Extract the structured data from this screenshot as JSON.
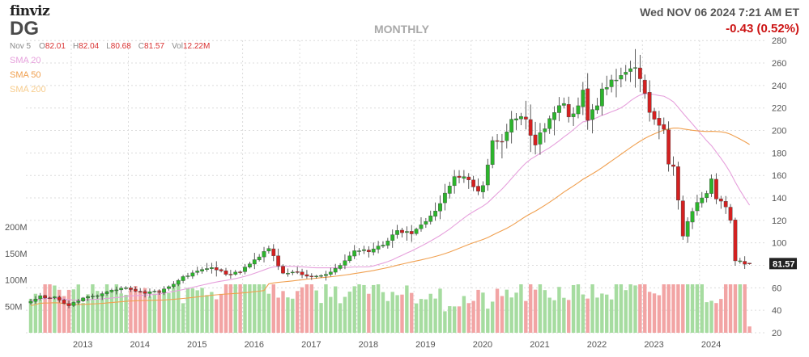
{
  "header": {
    "logo_text": "finviz",
    "ticker": "DG",
    "timeframe": "MONTHLY",
    "datetime": "Wed NOV 06 2024 7:21 AM ET",
    "change": "-0.43 (0.52%)"
  },
  "ohlc": {
    "date": "Nov 5",
    "open_label": "O",
    "open": "82.01",
    "high_label": "H",
    "high": "82.04",
    "low_label": "L",
    "low": "80.68",
    "close_label": "C",
    "close": "81.57",
    "volume_label": "Vol",
    "volume": "12.22M"
  },
  "legend": {
    "sma20": "SMA 20",
    "sma50": "SMA 50",
    "sma200": "SMA 200"
  },
  "colors": {
    "up": "#2cb52c",
    "down": "#d42020",
    "up_volume": "#a6dca0",
    "down_volume": "#f2a4a4",
    "sma20": "#e6a0dc",
    "sma50": "#f0a050",
    "sma200": "#f7cc8c",
    "last_price_bg": "#222222"
  },
  "chart_data": {
    "type": "candlestick",
    "price_axis": {
      "min": 20,
      "max": 280,
      "ticks": [
        20,
        40,
        60,
        80,
        100,
        120,
        140,
        160,
        180,
        200,
        220,
        240,
        260,
        280
      ]
    },
    "volume_axis": {
      "labels": [
        "50M",
        "100M",
        "150M",
        "200M"
      ],
      "values": [
        50,
        100,
        150,
        200
      ],
      "max": 260
    },
    "x_labels": [
      "2013",
      "2014",
      "2015",
      "2016",
      "2017",
      "2018",
      "2019",
      "2020",
      "2021",
      "2022",
      "2023",
      "2024"
    ],
    "last_price": "81.57",
    "anchors": [
      [
        "2012-04",
        48
      ],
      [
        "2012-05",
        50
      ],
      [
        "2012-06",
        53
      ],
      [
        "2012-07",
        51
      ],
      [
        "2012-08",
        51
      ],
      [
        "2012-09",
        52
      ],
      [
        "2012-10",
        49
      ],
      [
        "2012-11",
        46
      ],
      [
        "2012-12",
        44
      ],
      [
        "2013-01",
        47
      ],
      [
        "2013-03",
        51
      ],
      [
        "2013-06",
        53
      ],
      [
        "2013-09",
        58
      ],
      [
        "2013-12",
        60
      ],
      [
        "2014-02",
        57
      ],
      [
        "2014-04",
        55
      ],
      [
        "2014-06",
        57
      ],
      [
        "2014-07",
        56
      ],
      [
        "2014-09",
        61
      ],
      [
        "2014-12",
        70
      ],
      [
        "2015-03",
        75
      ],
      [
        "2015-06",
        78
      ],
      [
        "2015-08",
        75
      ],
      [
        "2015-09",
        72
      ],
      [
        "2015-12",
        74
      ],
      [
        "2016-03",
        85
      ],
      [
        "2016-06",
        95
      ],
      [
        "2016-09",
        73
      ],
      [
        "2016-12",
        74
      ],
      [
        "2017-03",
        70
      ],
      [
        "2017-06",
        72
      ],
      [
        "2017-09",
        80
      ],
      [
        "2017-12",
        93
      ],
      [
        "2018-02",
        94
      ],
      [
        "2018-03",
        92
      ],
      [
        "2018-06",
        98
      ],
      [
        "2018-09",
        111
      ],
      [
        "2018-12",
        108
      ],
      [
        "2019-03",
        119
      ],
      [
        "2019-06",
        135
      ],
      [
        "2019-09",
        159
      ],
      [
        "2019-12",
        156
      ],
      [
        "2020-02",
        146
      ],
      [
        "2020-03",
        151
      ],
      [
        "2020-05",
        191
      ],
      [
        "2020-07",
        190
      ],
      [
        "2020-09",
        210
      ],
      [
        "2020-12",
        210
      ],
      [
        "2021-02",
        187
      ],
      [
        "2021-03",
        198
      ],
      [
        "2021-06",
        216
      ],
      [
        "2021-08",
        224
      ],
      [
        "2021-09",
        212
      ],
      [
        "2021-11",
        222
      ],
      [
        "2021-12",
        236
      ],
      [
        "2022-01",
        209
      ],
      [
        "2022-03",
        222
      ],
      [
        "2022-04",
        237
      ],
      [
        "2022-06",
        245
      ],
      [
        "2022-08",
        249
      ],
      [
        "2022-10",
        255
      ],
      [
        "2022-11",
        256
      ],
      [
        "2022-12",
        246
      ],
      [
        "2023-01",
        233
      ],
      [
        "2023-02",
        216
      ],
      [
        "2023-03",
        210
      ],
      [
        "2023-05",
        201
      ],
      [
        "2023-06",
        170
      ],
      [
        "2023-07",
        168
      ],
      [
        "2023-08",
        138
      ],
      [
        "2023-09",
        106
      ],
      [
        "2023-10",
        119
      ],
      [
        "2023-12",
        136
      ],
      [
        "2024-02",
        144
      ],
      [
        "2024-03",
        157
      ],
      [
        "2024-04",
        139
      ],
      [
        "2024-06",
        132
      ],
      [
        "2024-07",
        120
      ],
      [
        "2024-08",
        84
      ],
      [
        "2024-09",
        84
      ],
      [
        "2024-10",
        81
      ],
      [
        "2024-11",
        81.57
      ]
    ],
    "series": [
      {
        "name": "SMA 20"
      },
      {
        "name": "SMA 50"
      },
      {
        "name": "SMA 200"
      }
    ]
  }
}
